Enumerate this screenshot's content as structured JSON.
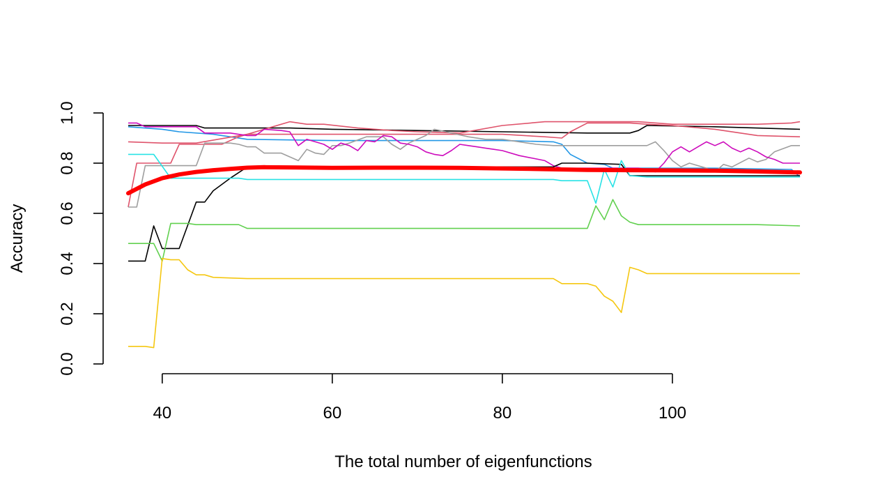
{
  "chart_data": {
    "type": "line",
    "title": "",
    "xlabel": "The total number of eigenfunctions",
    "ylabel": "Accuracy",
    "xlim": [
      36,
      115
    ],
    "ylim": [
      0,
      1
    ],
    "x_ticks": [
      40,
      60,
      80,
      100
    ],
    "y_ticks": [
      0.0,
      0.2,
      0.4,
      0.6,
      0.8,
      1.0
    ],
    "y_tick_labels": [
      "0.0",
      "0.2",
      "0.4",
      "0.6",
      "0.8",
      "1.0"
    ],
    "grid": false,
    "legend": "none",
    "series": [
      {
        "color": "#000000",
        "points": [
          [
            36,
            0.95
          ],
          [
            44,
            0.95
          ],
          [
            45,
            0.94
          ],
          [
            50,
            0.94
          ],
          [
            55,
            0.94
          ],
          [
            60,
            0.935
          ],
          [
            70,
            0.93
          ],
          [
            80,
            0.925
          ],
          [
            90,
            0.92
          ],
          [
            95,
            0.92
          ],
          [
            96,
            0.93
          ],
          [
            97,
            0.95
          ],
          [
            105,
            0.945
          ],
          [
            115,
            0.935
          ]
        ]
      },
      {
        "color": "#2297E6",
        "points": [
          [
            36,
            0.945
          ],
          [
            40,
            0.935
          ],
          [
            42,
            0.925
          ],
          [
            46,
            0.915
          ],
          [
            50,
            0.895
          ],
          [
            60,
            0.89
          ],
          [
            70,
            0.89
          ],
          [
            80,
            0.89
          ],
          [
            86,
            0.885
          ],
          [
            87,
            0.875
          ],
          [
            88,
            0.835
          ],
          [
            90,
            0.8
          ],
          [
            92,
            0.795
          ],
          [
            93,
            0.78
          ],
          [
            95,
            0.78
          ],
          [
            100,
            0.78
          ],
          [
            105,
            0.78
          ],
          [
            114,
            0.775
          ],
          [
            115,
            0.745
          ]
        ]
      },
      {
        "color": "#DF536B",
        "points": [
          [
            36,
            0.885
          ],
          [
            40,
            0.88
          ],
          [
            44,
            0.88
          ],
          [
            50,
            0.915
          ],
          [
            60,
            0.915
          ],
          [
            70,
            0.915
          ],
          [
            80,
            0.915
          ],
          [
            85,
            0.905
          ],
          [
            87,
            0.9
          ],
          [
            88,
            0.925
          ],
          [
            90,
            0.96
          ],
          [
            95,
            0.96
          ],
          [
            97,
            0.955
          ],
          [
            100,
            0.95
          ],
          [
            105,
            0.935
          ],
          [
            110,
            0.91
          ],
          [
            115,
            0.905
          ]
        ]
      },
      {
        "color": "#DF536B",
        "points": [
          [
            36,
            0.625
          ],
          [
            37,
            0.8
          ],
          [
            40,
            0.8
          ],
          [
            41,
            0.8
          ],
          [
            42,
            0.875
          ],
          [
            44,
            0.875
          ],
          [
            47,
            0.875
          ],
          [
            49,
            0.905
          ],
          [
            53,
            0.945
          ],
          [
            55,
            0.965
          ],
          [
            57,
            0.955
          ],
          [
            59,
            0.955
          ],
          [
            63,
            0.94
          ],
          [
            67,
            0.93
          ],
          [
            70,
            0.925
          ],
          [
            75,
            0.92
          ],
          [
            80,
            0.95
          ],
          [
            85,
            0.965
          ],
          [
            90,
            0.965
          ],
          [
            96,
            0.965
          ],
          [
            100,
            0.955
          ],
          [
            110,
            0.955
          ],
          [
            114,
            0.96
          ],
          [
            115,
            0.965
          ]
        ]
      },
      {
        "color": "#9E9E9E",
        "points": [
          [
            36,
            0.625
          ],
          [
            37,
            0.625
          ],
          [
            38,
            0.79
          ],
          [
            40,
            0.79
          ],
          [
            44,
            0.79
          ],
          [
            45,
            0.88
          ],
          [
            48,
            0.88
          ],
          [
            49,
            0.875
          ],
          [
            50,
            0.865
          ],
          [
            51,
            0.865
          ],
          [
            52,
            0.84
          ],
          [
            54,
            0.84
          ],
          [
            56,
            0.81
          ],
          [
            57,
            0.855
          ],
          [
            58,
            0.84
          ],
          [
            59,
            0.835
          ],
          [
            60,
            0.87
          ],
          [
            61,
            0.87
          ],
          [
            62,
            0.88
          ],
          [
            64,
            0.905
          ],
          [
            66,
            0.905
          ],
          [
            67,
            0.875
          ],
          [
            68,
            0.855
          ],
          [
            69,
            0.88
          ],
          [
            71,
            0.91
          ],
          [
            72,
            0.935
          ],
          [
            74,
            0.92
          ],
          [
            76,
            0.905
          ],
          [
            78,
            0.895
          ],
          [
            80,
            0.895
          ],
          [
            84,
            0.875
          ],
          [
            86,
            0.87
          ],
          [
            90,
            0.87
          ],
          [
            96,
            0.87
          ],
          [
            97,
            0.87
          ],
          [
            98,
            0.885
          ],
          [
            99,
            0.85
          ],
          [
            100,
            0.81
          ],
          [
            101,
            0.785
          ],
          [
            102,
            0.8
          ],
          [
            104,
            0.78
          ],
          [
            105,
            0.765
          ],
          [
            106,
            0.795
          ],
          [
            107,
            0.785
          ],
          [
            109,
            0.82
          ],
          [
            110,
            0.805
          ],
          [
            111,
            0.815
          ],
          [
            112,
            0.845
          ],
          [
            114,
            0.87
          ],
          [
            115,
            0.87
          ]
        ]
      },
      {
        "color": "#CD0BBC",
        "points": [
          [
            36,
            0.96
          ],
          [
            37,
            0.96
          ],
          [
            38,
            0.945
          ],
          [
            44,
            0.945
          ],
          [
            45,
            0.92
          ],
          [
            48,
            0.92
          ],
          [
            50,
            0.91
          ],
          [
            51,
            0.91
          ],
          [
            52,
            0.935
          ],
          [
            54,
            0.93
          ],
          [
            55,
            0.925
          ],
          [
            56,
            0.87
          ],
          [
            57,
            0.895
          ],
          [
            58,
            0.885
          ],
          [
            59,
            0.875
          ],
          [
            60,
            0.855
          ],
          [
            61,
            0.88
          ],
          [
            62,
            0.87
          ],
          [
            63,
            0.85
          ],
          [
            64,
            0.89
          ],
          [
            65,
            0.885
          ],
          [
            66,
            0.91
          ],
          [
            67,
            0.905
          ],
          [
            68,
            0.88
          ],
          [
            69,
            0.875
          ],
          [
            70,
            0.865
          ],
          [
            71,
            0.845
          ],
          [
            72,
            0.835
          ],
          [
            73,
            0.83
          ],
          [
            74,
            0.85
          ],
          [
            75,
            0.875
          ],
          [
            76,
            0.87
          ],
          [
            77,
            0.865
          ],
          [
            78,
            0.86
          ],
          [
            79,
            0.855
          ],
          [
            80,
            0.85
          ],
          [
            82,
            0.83
          ],
          [
            85,
            0.81
          ],
          [
            86,
            0.79
          ],
          [
            87,
            0.78
          ],
          [
            90,
            0.78
          ],
          [
            96,
            0.78
          ],
          [
            97,
            0.775
          ],
          [
            98,
            0.765
          ],
          [
            99,
            0.8
          ],
          [
            100,
            0.845
          ],
          [
            101,
            0.865
          ],
          [
            102,
            0.845
          ],
          [
            103,
            0.865
          ],
          [
            104,
            0.885
          ],
          [
            105,
            0.87
          ],
          [
            106,
            0.885
          ],
          [
            107,
            0.86
          ],
          [
            108,
            0.845
          ],
          [
            109,
            0.86
          ],
          [
            110,
            0.845
          ],
          [
            111,
            0.825
          ],
          [
            112,
            0.815
          ],
          [
            113,
            0.8
          ],
          [
            115,
            0.8
          ]
        ]
      },
      {
        "color": "#000000",
        "points": [
          [
            36,
            0.41
          ],
          [
            38,
            0.41
          ],
          [
            39,
            0.55
          ],
          [
            40,
            0.46
          ],
          [
            42,
            0.46
          ],
          [
            44,
            0.645
          ],
          [
            45,
            0.645
          ],
          [
            46,
            0.69
          ],
          [
            48,
            0.74
          ],
          [
            50,
            0.785
          ],
          [
            60,
            0.785
          ],
          [
            70,
            0.785
          ],
          [
            80,
            0.785
          ],
          [
            86,
            0.785
          ],
          [
            87,
            0.8
          ],
          [
            90,
            0.8
          ],
          [
            94,
            0.795
          ],
          [
            95,
            0.75
          ],
          [
            100,
            0.75
          ],
          [
            110,
            0.75
          ],
          [
            115,
            0.75
          ]
        ]
      },
      {
        "color": "#28E2E5",
        "points": [
          [
            36,
            0.835
          ],
          [
            39,
            0.835
          ],
          [
            41,
            0.74
          ],
          [
            42,
            0.74
          ],
          [
            49,
            0.74
          ],
          [
            50,
            0.735
          ],
          [
            86,
            0.735
          ],
          [
            87,
            0.73
          ],
          [
            90,
            0.73
          ],
          [
            91,
            0.64
          ],
          [
            92,
            0.775
          ],
          [
            93,
            0.705
          ],
          [
            94,
            0.81
          ],
          [
            95,
            0.75
          ],
          [
            97,
            0.745
          ],
          [
            110,
            0.745
          ],
          [
            115,
            0.745
          ]
        ]
      },
      {
        "color": "#61D04F",
        "points": [
          [
            36,
            0.48
          ],
          [
            39,
            0.48
          ],
          [
            40,
            0.41
          ],
          [
            41,
            0.56
          ],
          [
            43,
            0.56
          ],
          [
            44,
            0.555
          ],
          [
            49,
            0.555
          ],
          [
            50,
            0.54
          ],
          [
            52,
            0.54
          ],
          [
            86,
            0.54
          ],
          [
            90,
            0.54
          ],
          [
            91,
            0.63
          ],
          [
            92,
            0.575
          ],
          [
            93,
            0.655
          ],
          [
            94,
            0.59
          ],
          [
            95,
            0.565
          ],
          [
            96,
            0.555
          ],
          [
            97,
            0.555
          ],
          [
            110,
            0.555
          ],
          [
            115,
            0.55
          ]
        ]
      },
      {
        "color": "#F5C710",
        "points": [
          [
            36,
            0.07
          ],
          [
            38,
            0.07
          ],
          [
            39,
            0.065
          ],
          [
            40,
            0.42
          ],
          [
            41,
            0.415
          ],
          [
            42,
            0.415
          ],
          [
            43,
            0.375
          ],
          [
            44,
            0.355
          ],
          [
            45,
            0.355
          ],
          [
            46,
            0.345
          ],
          [
            50,
            0.34
          ],
          [
            60,
            0.34
          ],
          [
            70,
            0.34
          ],
          [
            80,
            0.34
          ],
          [
            86,
            0.34
          ],
          [
            87,
            0.32
          ],
          [
            90,
            0.32
          ],
          [
            91,
            0.31
          ],
          [
            92,
            0.27
          ],
          [
            93,
            0.25
          ],
          [
            94,
            0.205
          ],
          [
            95,
            0.385
          ],
          [
            96,
            0.375
          ],
          [
            97,
            0.36
          ],
          [
            100,
            0.36
          ],
          [
            110,
            0.36
          ],
          [
            115,
            0.36
          ]
        ]
      },
      {
        "color": "#FF0000",
        "bold": true,
        "points": [
          [
            36,
            0.68
          ],
          [
            38,
            0.715
          ],
          [
            40,
            0.74
          ],
          [
            42,
            0.755
          ],
          [
            44,
            0.765
          ],
          [
            46,
            0.772
          ],
          [
            48,
            0.777
          ],
          [
            50,
            0.782
          ],
          [
            52,
            0.784
          ],
          [
            55,
            0.783
          ],
          [
            60,
            0.781
          ],
          [
            65,
            0.782
          ],
          [
            70,
            0.782
          ],
          [
            75,
            0.781
          ],
          [
            80,
            0.779
          ],
          [
            85,
            0.776
          ],
          [
            90,
            0.773
          ],
          [
            95,
            0.772
          ],
          [
            100,
            0.771
          ],
          [
            105,
            0.77
          ],
          [
            110,
            0.767
          ],
          [
            115,
            0.763
          ]
        ]
      }
    ]
  }
}
